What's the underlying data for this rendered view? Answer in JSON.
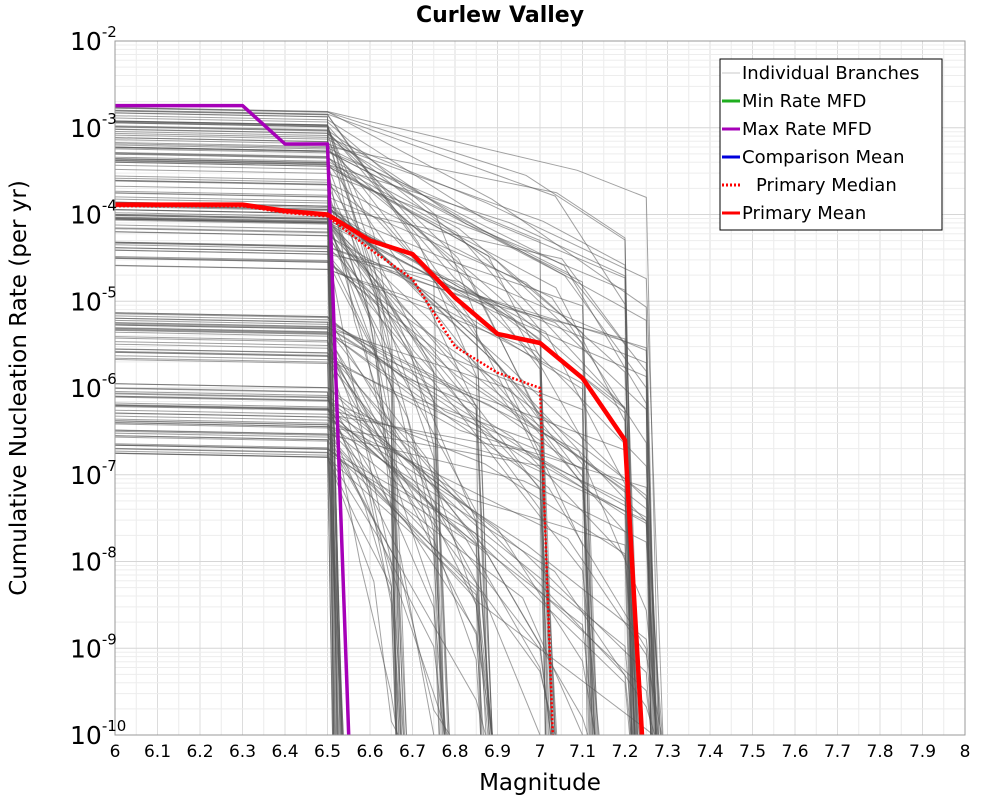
{
  "chart_data": {
    "type": "line",
    "title": "Curlew Valley",
    "xlabel": "Magnitude",
    "ylabel": "Cumulative Nucleation Rate (per yr)",
    "xlim": [
      6,
      8
    ],
    "ylim_log10": [
      -10,
      -2
    ],
    "y_scale": "log",
    "grid": true,
    "x_ticks": [
      "6",
      "6.1",
      "6.2",
      "6.3",
      "6.4",
      "6.5",
      "6.6",
      "6.7",
      "6.8",
      "6.9",
      "7",
      "7.1",
      "7.2",
      "7.3",
      "7.4",
      "7.5",
      "7.6",
      "7.7",
      "7.8",
      "7.9",
      "8"
    ],
    "y_ticks": [
      {
        "base": "10",
        "exp": "-2"
      },
      {
        "base": "10",
        "exp": "-3"
      },
      {
        "base": "10",
        "exp": "-4"
      },
      {
        "base": "10",
        "exp": "-5"
      },
      {
        "base": "10",
        "exp": "-6"
      },
      {
        "base": "10",
        "exp": "-7"
      },
      {
        "base": "10",
        "exp": "-8"
      },
      {
        "base": "10",
        "exp": "-9"
      },
      {
        "base": "10",
        "exp": "-10"
      }
    ],
    "legend_position": "top-right",
    "legend": [
      {
        "label": "Individual Branches",
        "color": "#c8c8c8",
        "style": "solid"
      },
      {
        "label": "Min Rate MFD",
        "color": "#1fae1f",
        "style": "solid"
      },
      {
        "label": "Max Rate MFD",
        "color": "#a600b8",
        "style": "solid"
      },
      {
        "label": "Comparison Mean",
        "color": "#0000dd",
        "style": "solid"
      },
      {
        "label": "Primary Median",
        "color": "#ff0000",
        "style": "dotted"
      },
      {
        "label": "Primary Mean",
        "color": "#ff0000",
        "style": "solid"
      }
    ],
    "series": [
      {
        "name": "Max Rate MFD",
        "color": "#a600b8",
        "width": 3.5,
        "dash": "",
        "x": [
          6.0,
          6.3,
          6.4,
          6.5,
          6.55
        ],
        "y": [
          0.0018,
          0.0018,
          0.00065,
          0.00065,
          1e-10
        ]
      },
      {
        "name": "Primary Median",
        "color": "#ff0000",
        "width": 2.5,
        "dash": "2,2",
        "x": [
          6.0,
          6.3,
          6.4,
          6.5,
          6.6,
          6.7,
          6.8,
          6.9,
          7.0,
          7.03
        ],
        "y": [
          0.000125,
          0.000125,
          0.000105,
          9.5e-05,
          4e-05,
          1.8e-05,
          3e-06,
          1.5e-06,
          1e-06,
          1e-10
        ]
      },
      {
        "name": "Primary Mean",
        "color": "#ff0000",
        "width": 4.5,
        "dash": "",
        "x": [
          6.0,
          6.3,
          6.4,
          6.5,
          6.6,
          6.7,
          6.8,
          6.9,
          7.0,
          7.1,
          7.2,
          7.24
        ],
        "y": [
          0.00013,
          0.00013,
          0.00011,
          0.0001,
          5e-05,
          3.5e-05,
          1.1e-05,
          4.2e-06,
          3.3e-06,
          1.3e-06,
          2.5e-07,
          1e-10
        ]
      }
    ],
    "branch_rates": [
      2e-07,
      2.5e-07,
      3e-07,
      4e-07,
      5e-07,
      6e-07,
      7e-07,
      8e-07,
      1e-06,
      2.5e-06,
      3.5e-06,
      5e-06,
      6.5e-06,
      3e-05,
      4.5e-05,
      6e-05,
      8e-05,
      0.0001,
      0.00013,
      0.00016,
      0.0002,
      0.00026,
      0.00035,
      0.00045,
      0.00055,
      0.0007,
      0.0009,
      0.0011,
      0.0013,
      0.0015
    ],
    "branch_end_magnitudes": [
      6.5,
      6.65,
      6.75,
      6.85,
      7.0,
      7.1,
      7.2,
      7.25
    ]
  }
}
